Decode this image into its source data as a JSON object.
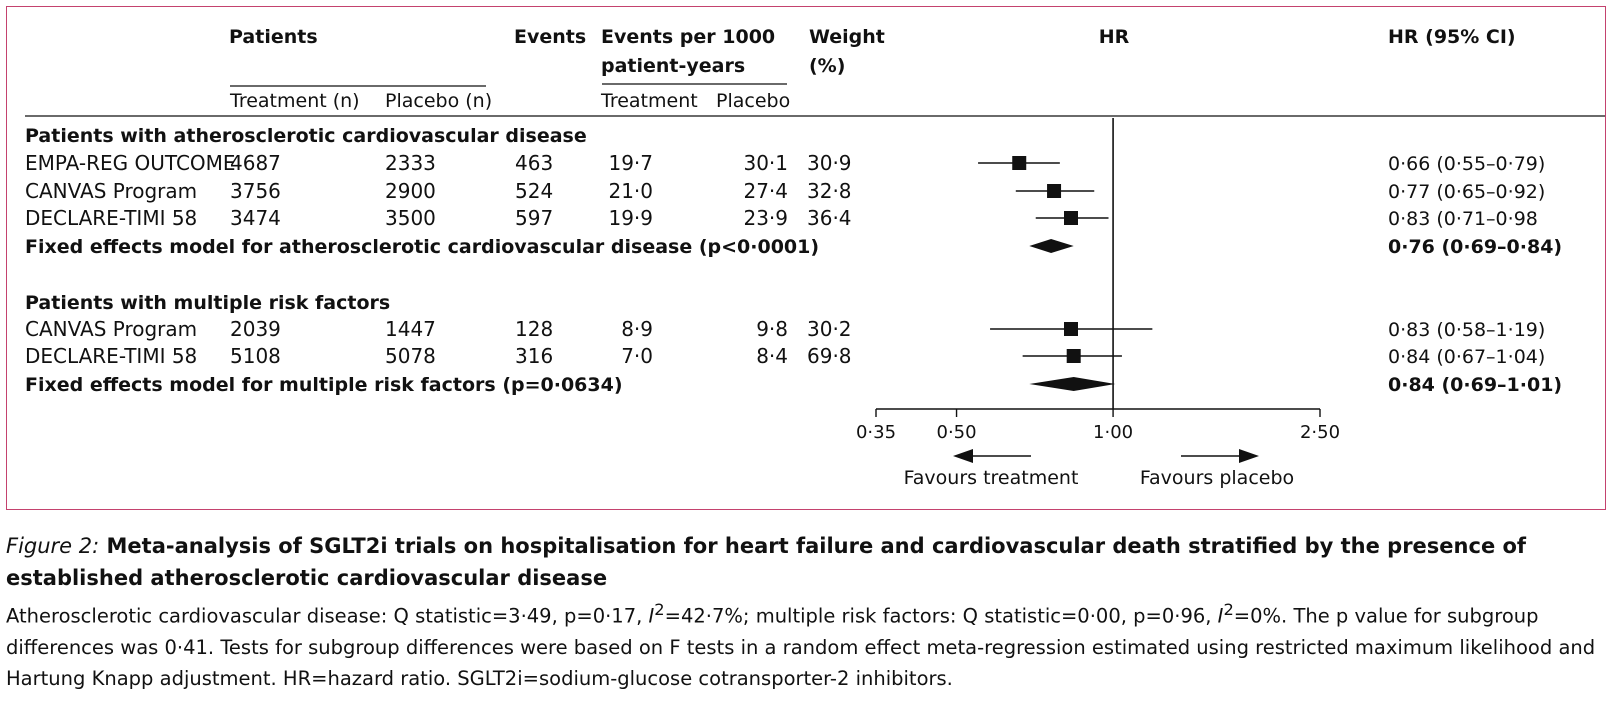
{
  "headers": {
    "patients": "Patients",
    "treatment_n": "Treatment (n)",
    "placebo_n": "Placebo (n)",
    "events": "Events",
    "events_per_1000_l1": "Events per 1000",
    "events_per_1000_l2": "patient-years",
    "treatment": "Treatment",
    "placebo": "Placebo",
    "weight_l1": "Weight",
    "weight_l2": "(%)",
    "hr": "HR",
    "hr_ci": "HR (95% CI)"
  },
  "groups": [
    {
      "label": "Patients with atherosclerotic cardiovascular disease",
      "studies": [
        {
          "name": "EMPA-REG OUTCOME",
          "treatment_n": "4687",
          "placebo_n": "2333",
          "events": "463",
          "rate_treatment": "19·7",
          "rate_placebo": "30·1",
          "weight": "30·9",
          "ci_text": "0·66 (0·55–0·79)"
        },
        {
          "name": "CANVAS Program",
          "treatment_n": "3756",
          "placebo_n": "2900",
          "events": "524",
          "rate_treatment": "21·0",
          "rate_placebo": "27·4",
          "weight": "32·8",
          "ci_text": "0·77 (0·65–0·92)"
        },
        {
          "name": "DECLARE-TIMI 58",
          "treatment_n": "3474",
          "placebo_n": "3500",
          "events": "597",
          "rate_treatment": "19·9",
          "rate_placebo": "23·9",
          "weight": "36·4",
          "ci_text": "0·83 (0·71–0·98"
        }
      ],
      "pooled": {
        "label": "Fixed effects model for atherosclerotic cardiovascular disease (p<0·0001)",
        "ci_text": "0·76 (0·69–0·84)"
      }
    },
    {
      "label": "Patients with multiple risk factors",
      "studies": [
        {
          "name": "CANVAS Program",
          "treatment_n": "2039",
          "placebo_n": "1447",
          "events": "128",
          "rate_treatment": "8·9",
          "rate_placebo": "9·8",
          "weight": "30·2",
          "ci_text": "0·83 (0·58–1·19)"
        },
        {
          "name": "DECLARE-TIMI 58",
          "treatment_n": "5108",
          "placebo_n": "5078",
          "events": "316",
          "rate_treatment": "7·0",
          "rate_placebo": "8·4",
          "weight": "69·8",
          "ci_text": "0·84 (0·67–1·04)"
        }
      ],
      "pooled": {
        "label": "Fixed effects model for multiple risk factors (p=0·0634)",
        "ci_text": "0·84 (0·69–1·01)"
      }
    }
  ],
  "axis": {
    "ticks": [
      0.35,
      0.5,
      1.0,
      2.5
    ],
    "tick_labels": [
      "0·35",
      "0·50",
      "1·00",
      "2·50"
    ],
    "favours_treatment": "Favours treatment",
    "favours_placebo": "Favours placebo"
  },
  "chart_data": {
    "type": "forest",
    "xlabel": "HR",
    "scale": "log",
    "xlim": [
      0.35,
      2.5
    ],
    "reference_line": 1.0,
    "rows": [
      {
        "group": "Patients with atherosclerotic cardiovascular disease",
        "study": "EMPA-REG OUTCOME",
        "hr": 0.66,
        "lower": 0.55,
        "upper": 0.79,
        "weight": 30.9
      },
      {
        "group": "Patients with atherosclerotic cardiovascular disease",
        "study": "CANVAS Program",
        "hr": 0.77,
        "lower": 0.65,
        "upper": 0.92,
        "weight": 32.8
      },
      {
        "group": "Patients with atherosclerotic cardiovascular disease",
        "study": "DECLARE-TIMI 58",
        "hr": 0.83,
        "lower": 0.71,
        "upper": 0.98,
        "weight": 36.4
      },
      {
        "group": "Patients with atherosclerotic cardiovascular disease",
        "study": "Fixed effects model",
        "hr": 0.76,
        "lower": 0.69,
        "upper": 0.84,
        "pooled": true
      },
      {
        "group": "Patients with multiple risk factors",
        "study": "CANVAS Program",
        "hr": 0.83,
        "lower": 0.58,
        "upper": 1.19,
        "weight": 30.2
      },
      {
        "group": "Patients with multiple risk factors",
        "study": "DECLARE-TIMI 58",
        "hr": 0.84,
        "lower": 0.67,
        "upper": 1.04,
        "weight": 69.8
      },
      {
        "group": "Patients with multiple risk factors",
        "study": "Fixed effects model",
        "hr": 0.84,
        "lower": 0.69,
        "upper": 1.01,
        "pooled": true
      }
    ]
  },
  "caption": {
    "figure_label": "Figure 2:",
    "title": "Meta-analysis of SGLT2i trials on hospitalisation for heart failure and cardiovascular death stratified by the presence of established atherosclerotic cardiovascular disease",
    "body_1": "Atherosclerotic cardiovascular disease: Q statistic=3·49, p=0·17, ",
    "i2_symbol": "I",
    "i2_sup": "2",
    "body_2": "=42·7%; multiple risk factors: Q statistic=0·00, p=0·96, ",
    "body_3": "=0%. The p value for subgroup differences was 0·41. Tests for subgroup differences were based on F tests in a random effect meta-regression estimated using restricted maximum likelihood and Hartung Knapp adjustment. HR=hazard ratio. SGLT2i=sodium-glucose cotransporter-2 inhibitors."
  }
}
